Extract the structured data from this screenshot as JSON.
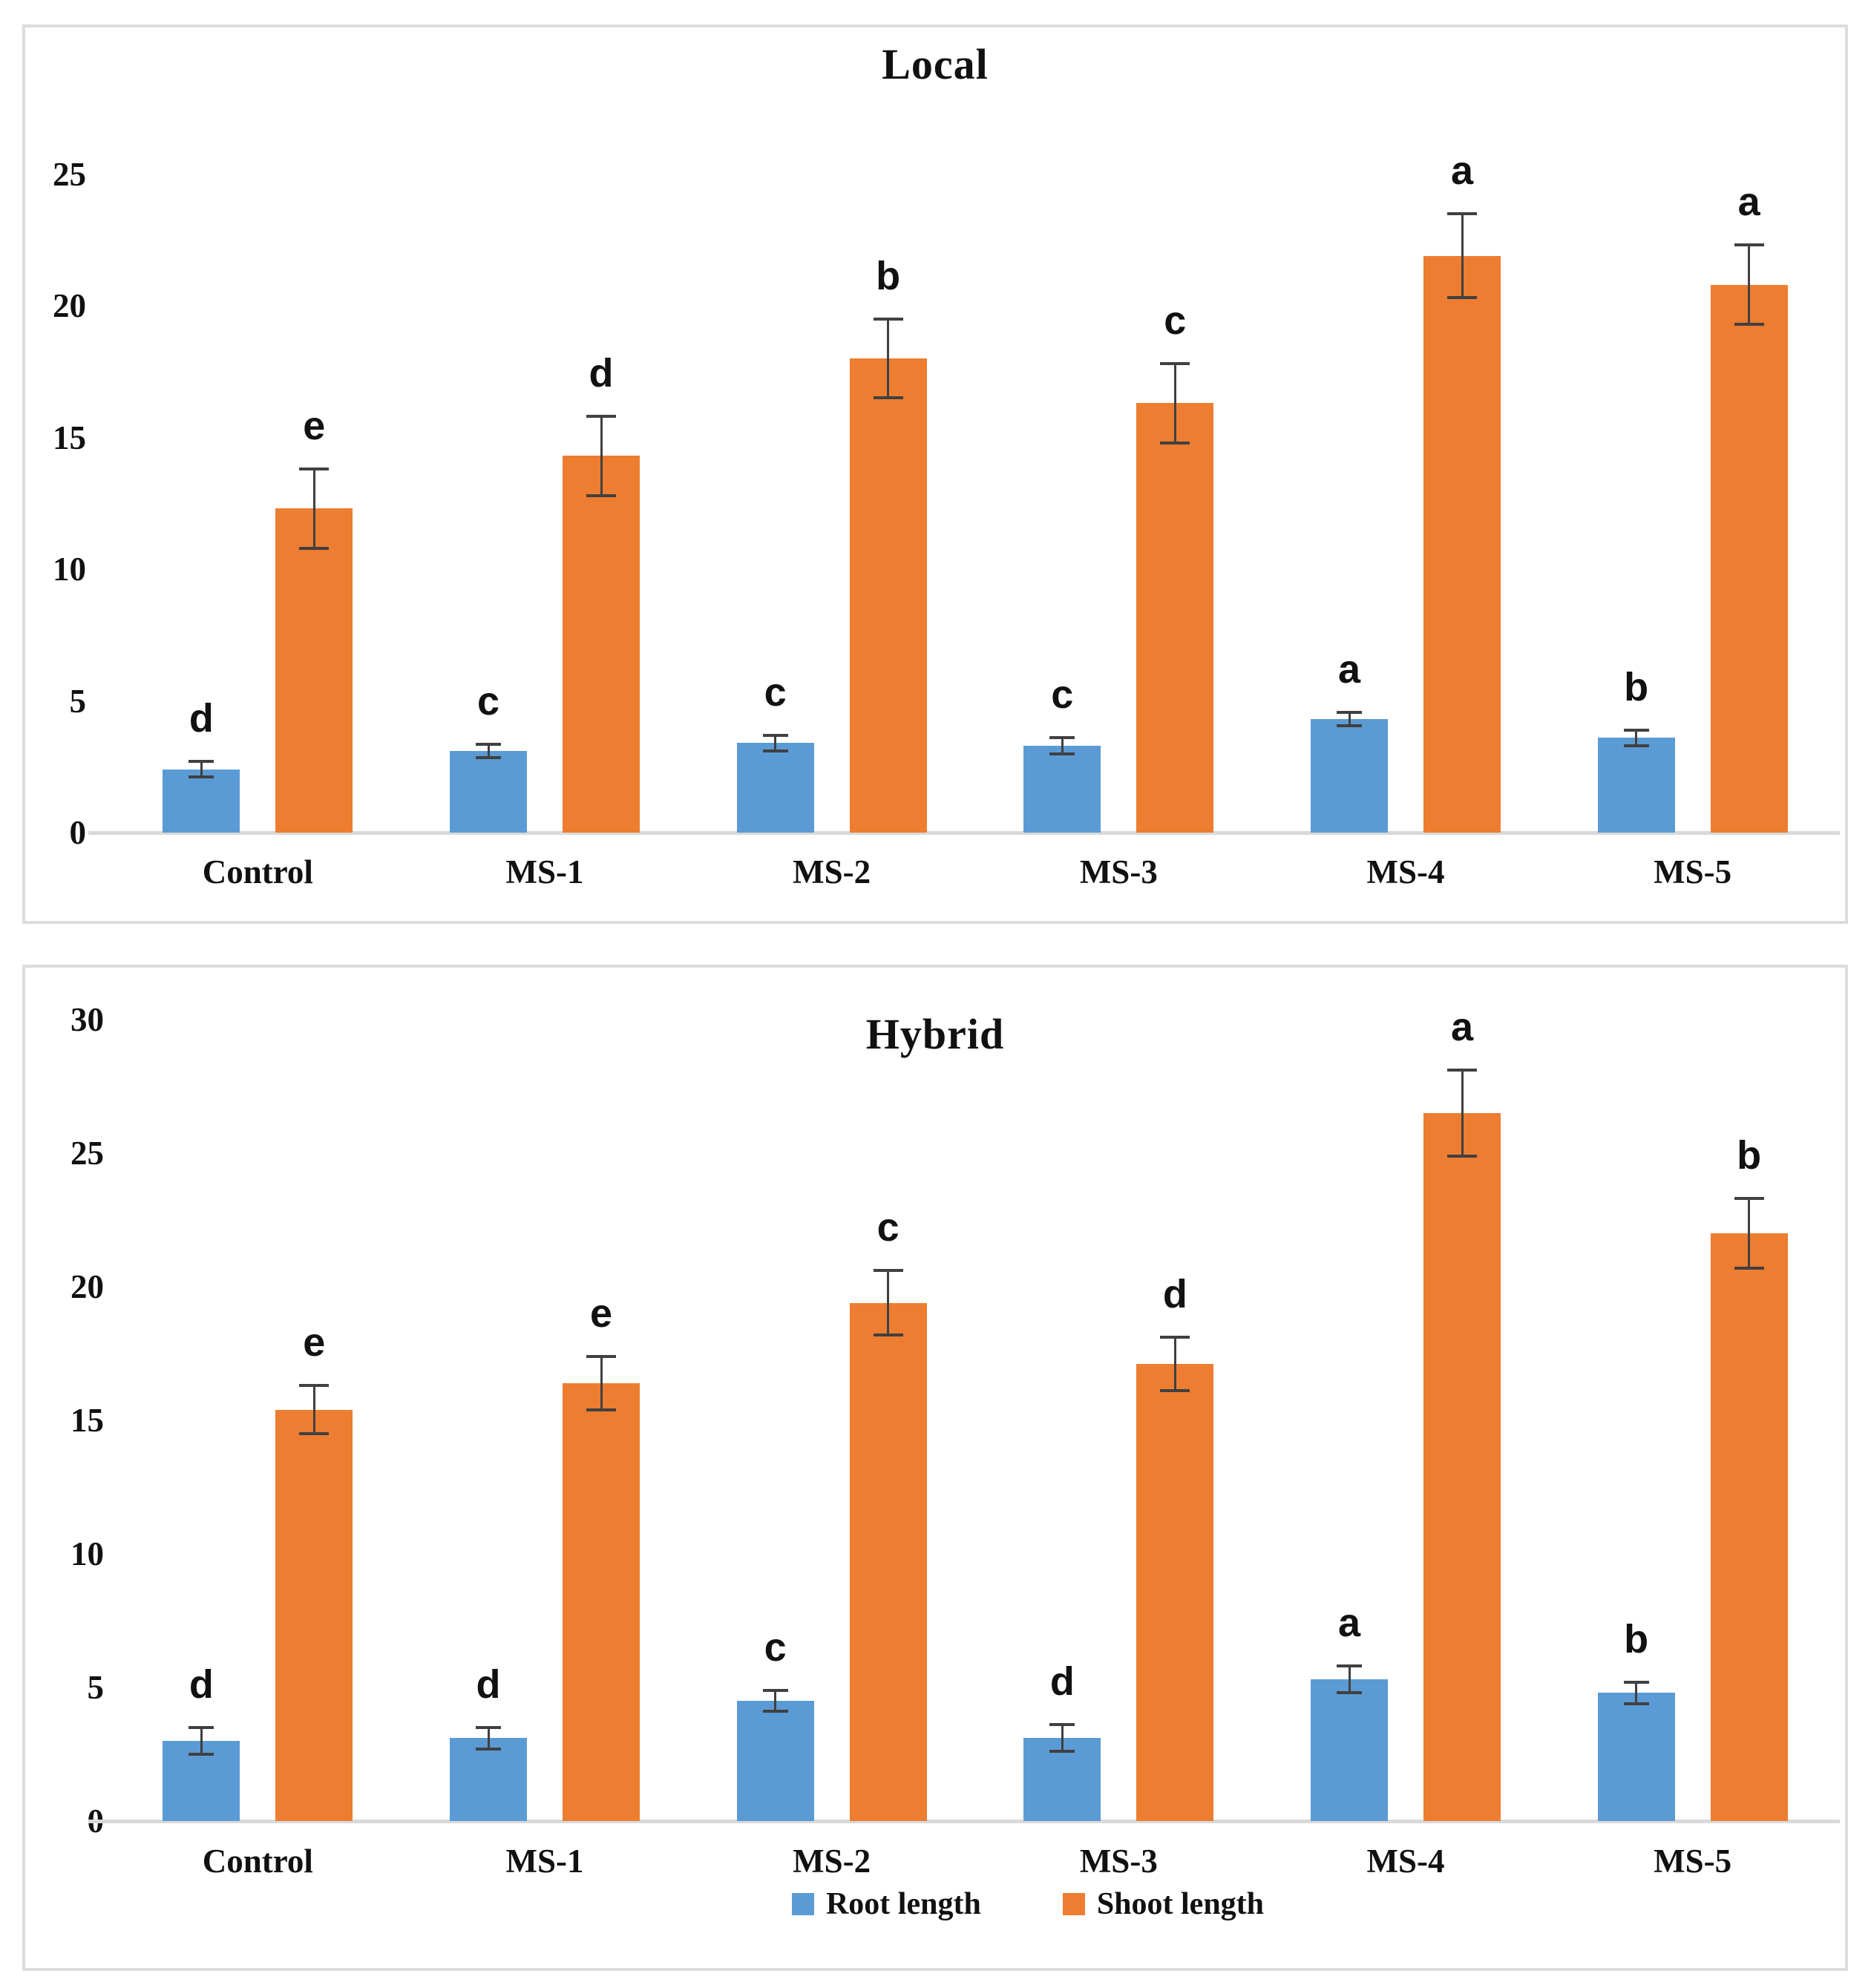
{
  "figure": {
    "background": "#ffffff"
  },
  "colors": {
    "root_series": "#5B9BD5",
    "shoot_series": "#ED7D31",
    "panel_border": "#dcdcdc",
    "axis_line": "#d9d9d9",
    "error_bar": "#404040",
    "text": "#111111"
  },
  "legend": {
    "items": [
      {
        "label": "Root length",
        "color": "#5B9BD5"
      },
      {
        "label": "Shoot length",
        "color": "#ED7D31"
      }
    ]
  },
  "chart_data": [
    {
      "type": "bar",
      "title": "Local",
      "categories": [
        "Control",
        "MS-1",
        "MS-2",
        "MS-3",
        "MS-4",
        "MS-5"
      ],
      "series": [
        {
          "name": "Root length",
          "color": "#5B9BD5",
          "values": [
            2.4,
            3.1,
            3.4,
            3.3,
            4.3,
            3.6
          ],
          "errors": [
            0.3,
            0.25,
            0.3,
            0.3,
            0.25,
            0.3
          ],
          "letters": [
            "d",
            "c",
            "c",
            "c",
            "a",
            "b"
          ]
        },
        {
          "name": "Shoot length",
          "color": "#ED7D31",
          "values": [
            12.3,
            14.3,
            18.0,
            16.3,
            21.9,
            20.8
          ],
          "errors": [
            1.5,
            1.5,
            1.5,
            1.5,
            1.6,
            1.5
          ],
          "letters": [
            "e",
            "d",
            "b",
            "c",
            "a",
            "a"
          ]
        }
      ],
      "xlabel": "",
      "ylabel": "",
      "ylim": [
        0,
        25
      ],
      "yticks": [
        0,
        5,
        10,
        15,
        20,
        25
      ],
      "grid": false,
      "error_bars": true,
      "legend_position": "none"
    },
    {
      "type": "bar",
      "title": "Hybrid",
      "categories": [
        "Control",
        "MS-1",
        "MS-2",
        "MS-3",
        "MS-4",
        "MS-5"
      ],
      "series": [
        {
          "name": "Root length",
          "color": "#5B9BD5",
          "values": [
            3.0,
            3.1,
            4.5,
            3.1,
            5.3,
            4.8
          ],
          "errors": [
            0.5,
            0.4,
            0.4,
            0.5,
            0.5,
            0.4
          ],
          "letters": [
            "d",
            "d",
            "c",
            "d",
            "a",
            "b"
          ]
        },
        {
          "name": "Shoot length",
          "color": "#ED7D31",
          "values": [
            15.4,
            16.4,
            19.4,
            17.1,
            26.5,
            22.0
          ],
          "errors": [
            0.9,
            1.0,
            1.2,
            1.0,
            1.6,
            1.3
          ],
          "letters": [
            "e",
            "e",
            "c",
            "d",
            "a",
            "b"
          ]
        }
      ],
      "xlabel": "",
      "ylabel": "",
      "ylim": [
        0,
        30
      ],
      "yticks": [
        0,
        5,
        10,
        15,
        20,
        25,
        30
      ],
      "grid": false,
      "error_bars": true,
      "legend_position": "bottom"
    }
  ]
}
